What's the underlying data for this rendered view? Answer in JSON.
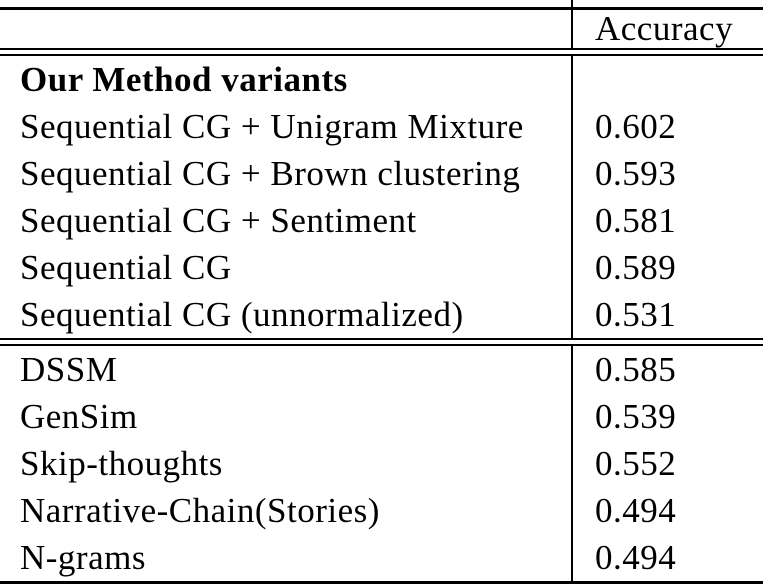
{
  "table": {
    "header": {
      "accuracy": "Accuracy"
    },
    "section1": {
      "title": "Our Method variants",
      "rows": [
        {
          "label": "Sequential CG + Unigram Mixture",
          "value": "0.602"
        },
        {
          "label": "Sequential CG + Brown clustering",
          "value": "0.593"
        },
        {
          "label": "Sequential CG + Sentiment",
          "value": "0.581"
        },
        {
          "label": "Sequential CG",
          "value": "0.589"
        },
        {
          "label": "Sequential CG (unnormalized)",
          "value": "0.531"
        }
      ]
    },
    "section2": {
      "rows": [
        {
          "label": "DSSM",
          "value": "0.585"
        },
        {
          "label": "GenSim",
          "value": "0.539"
        },
        {
          "label": "Skip-thoughts",
          "value": "0.552"
        },
        {
          "label": "Narrative-Chain(Stories)",
          "value": "0.494"
        },
        {
          "label": "N-grams",
          "value": "0.494"
        }
      ]
    }
  }
}
